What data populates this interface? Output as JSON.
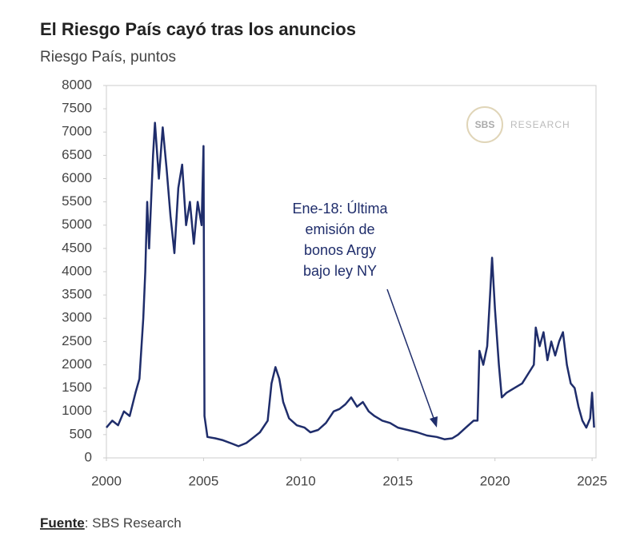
{
  "chart_data": {
    "type": "line",
    "title": "El Riesgo País cayó tras los anuncios",
    "subtitle": "Riesgo País, puntos",
    "annotation": [
      "Ene-18: Última",
      "emisión de",
      "bonos Argy",
      "bajo ley NY"
    ],
    "logo": {
      "mark": "SBS",
      "text": "RESEARCH"
    },
    "source": {
      "label": "Fuente",
      "text": ": SBS Research"
    },
    "xlim": [
      2000,
      2025.2
    ],
    "xticks": [
      2000,
      2005,
      2010,
      2015,
      2020,
      2025
    ],
    "ylim": [
      0,
      8000
    ],
    "yticks": [
      0,
      500,
      1000,
      1500,
      2000,
      2500,
      3000,
      3500,
      4000,
      4500,
      5000,
      5500,
      6000,
      6500,
      7000,
      7500,
      8000
    ],
    "x": [
      2000.0,
      2000.3,
      2000.6,
      2000.9,
      2001.2,
      2001.5,
      2001.7,
      2001.9,
      2002.0,
      2002.1,
      2002.2,
      2002.4,
      2002.5,
      2002.7,
      2002.9,
      2003.1,
      2003.3,
      2003.5,
      2003.7,
      2003.9,
      2004.1,
      2004.3,
      2004.5,
      2004.7,
      2004.9,
      2005.0,
      2005.05,
      2005.2,
      2005.6,
      2006.0,
      2006.5,
      2006.8,
      2007.2,
      2007.6,
      2007.9,
      2008.3,
      2008.5,
      2008.7,
      2008.9,
      2009.1,
      2009.4,
      2009.8,
      2010.2,
      2010.5,
      2010.9,
      2011.3,
      2011.7,
      2012.0,
      2012.3,
      2012.6,
      2012.9,
      2013.2,
      2013.5,
      2013.8,
      2014.2,
      2014.6,
      2015.0,
      2015.5,
      2016.0,
      2016.5,
      2017.0,
      2017.4,
      2017.8,
      2018.1,
      2018.5,
      2018.9,
      2019.1,
      2019.2,
      2019.4,
      2019.6,
      2019.75,
      2019.85,
      2020.0,
      2020.2,
      2020.35,
      2020.6,
      2021.0,
      2021.4,
      2021.7,
      2022.0,
      2022.1,
      2022.3,
      2022.5,
      2022.7,
      2022.9,
      2023.1,
      2023.3,
      2023.5,
      2023.7,
      2023.9,
      2024.1,
      2024.3,
      2024.5,
      2024.7,
      2024.9,
      2025.0,
      2025.1
    ],
    "series": [
      {
        "name": "Riesgo País",
        "color": "#1f2d6b",
        "values": [
          650,
          800,
          700,
          1000,
          900,
          1400,
          1700,
          3000,
          4000,
          5500,
          4500,
          6500,
          7200,
          6000,
          7100,
          6200,
          5200,
          4400,
          5800,
          6300,
          5000,
          5500,
          4600,
          5500,
          5000,
          6700,
          900,
          450,
          420,
          380,
          300,
          250,
          320,
          450,
          550,
          800,
          1600,
          1950,
          1700,
          1200,
          850,
          700,
          650,
          550,
          600,
          750,
          1000,
          1050,
          1150,
          1300,
          1100,
          1200,
          1000,
          900,
          800,
          750,
          650,
          600,
          550,
          480,
          450,
          400,
          420,
          500,
          650,
          800,
          800,
          2300,
          2000,
          2400,
          3500,
          4300,
          3200,
          2000,
          1300,
          1400,
          1500,
          1600,
          1800,
          2000,
          2800,
          2400,
          2700,
          2100,
          2500,
          2200,
          2500,
          2700,
          2000,
          1600,
          1500,
          1100,
          800,
          650,
          850,
          1400,
          650
        ]
      }
    ]
  }
}
